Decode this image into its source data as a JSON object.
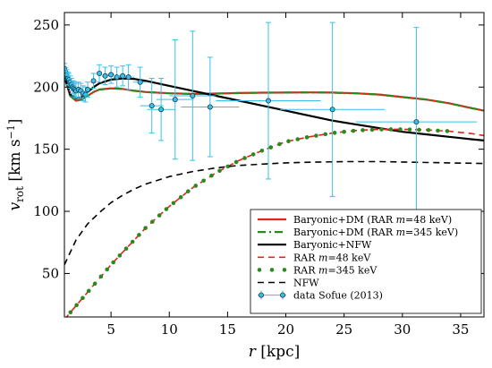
{
  "chart_data": {
    "type": "line",
    "xlabel": "r [kpc]",
    "ylabel": "v_rot [km s^-1]",
    "ylabel_parts": {
      "v": "v",
      "sub": "rot",
      "unit": "[km s",
      "sup": "−1",
      "close": "]"
    },
    "xlabel_parts": {
      "r": "r",
      "unit": " [kpc]"
    },
    "xlim": [
      1,
      37
    ],
    "ylim": [
      15,
      260
    ],
    "xticks": [
      5,
      10,
      15,
      20,
      25,
      30,
      35
    ],
    "yticks": [
      50,
      100,
      150,
      200,
      250
    ],
    "legend_position": "lower-right",
    "series": [
      {
        "name": "Baryonic+DM (RAR  m=48 keV)",
        "label_parts": [
          "Baryonic+DM (RAR  ",
          "m",
          "=48 keV)"
        ],
        "style": "solid",
        "color": "#e8211c",
        "x": [
          1.0,
          1.5,
          2.0,
          2.5,
          3.0,
          3.5,
          4.0,
          5.0,
          6.0,
          7.0,
          8.0,
          10.0,
          12.0,
          14.0,
          16.0,
          18.0,
          20.0,
          22.0,
          24.0,
          26.0,
          28.0,
          30.0,
          32.0,
          34.0,
          36.0,
          37.0
        ],
        "y": [
          208,
          193,
          189,
          190,
          193,
          196,
          198,
          199,
          198.5,
          197,
          196,
          195,
          194.5,
          194.8,
          195.2,
          195.5,
          195.6,
          195.7,
          195.6,
          195,
          194,
          192,
          190,
          187,
          183,
          181
        ]
      },
      {
        "name": "Baryonic+DM (RAR  m=345 keV)",
        "label_parts": [
          "Baryonic+DM (RAR  ",
          "m",
          "=345 keV)"
        ],
        "style": "dashdot",
        "color": "#2a8a1e",
        "x": [
          1.0,
          1.5,
          2.0,
          2.5,
          3.0,
          3.5,
          4.0,
          5.0,
          6.0,
          7.0,
          8.0,
          10.0,
          12.0,
          14.0,
          16.0,
          18.0,
          20.0,
          22.0,
          24.0,
          26.0,
          28.0,
          30.0,
          32.0,
          34.0,
          36.0,
          37.0
        ],
        "y": [
          208,
          193,
          189,
          190,
          193,
          196,
          198,
          199,
          198.5,
          197,
          196,
          195,
          194.5,
          194.8,
          195.2,
          195.5,
          195.6,
          195.7,
          195.6,
          195,
          194,
          192,
          190,
          187,
          183,
          181
        ]
      },
      {
        "name": "Baryonic+NFW",
        "label_parts": [
          "Baryonic+NFW"
        ],
        "style": "solid",
        "color": "#000000",
        "x": [
          1.0,
          1.5,
          2.0,
          2.5,
          3.0,
          3.5,
          4.0,
          5.0,
          6.0,
          7.0,
          8.0,
          10.0,
          12.0,
          14.0,
          16.0,
          18.0,
          20.0,
          22.0,
          24.0,
          26.0,
          28.0,
          30.0,
          32.0,
          34.0,
          36.0,
          37.0
        ],
        "y": [
          209,
          194,
          191,
          192,
          196,
          200,
          203,
          206,
          207,
          206.5,
          205,
          201,
          197,
          193,
          189,
          185,
          181,
          177,
          173,
          170,
          167,
          164,
          162,
          160,
          158,
          157
        ]
      },
      {
        "name": "RAR m=48 keV",
        "label_parts": [
          "RAR ",
          "m",
          "=48 keV"
        ],
        "style": "dashed",
        "color": "#e8211c",
        "x": [
          1.0,
          2.0,
          3.0,
          4.0,
          5.0,
          6.0,
          7.0,
          8.0,
          10.0,
          12.0,
          14.0,
          16.0,
          18.0,
          20.0,
          22.0,
          24.0,
          26.0,
          28.0,
          30.0,
          32.0,
          34.0,
          36.0,
          37.0
        ],
        "y": [
          13,
          24,
          35,
          46,
          57,
          67,
          77,
          87,
          104,
          119,
          131,
          141,
          149,
          156,
          160,
          163,
          165,
          166,
          166,
          165.5,
          164.5,
          162.5,
          161
        ]
      },
      {
        "name": "RAR m=345 keV",
        "label_parts": [
          "RAR ",
          "m",
          "=345 keV"
        ],
        "style": "dots",
        "color": "#2a8a1e",
        "x": [
          1.0,
          2.0,
          3.0,
          4.0,
          5.0,
          6.0,
          7.0,
          8.0,
          10.0,
          12.0,
          14.0,
          16.0,
          18.0,
          20.0,
          22.0,
          24.0,
          26.0,
          28.0,
          30.0,
          32.0,
          34.0
        ],
        "y": [
          13,
          24,
          35,
          46,
          57,
          67,
          77,
          87,
          104,
          119,
          131,
          141,
          149,
          156,
          160,
          163,
          165,
          166,
          166,
          165.5,
          164.5
        ]
      },
      {
        "name": "NFW",
        "label_parts": [
          "NFW"
        ],
        "style": "dashed",
        "color": "#000000",
        "x": [
          1.0,
          2.0,
          3.0,
          4.0,
          5.0,
          6.0,
          7.0,
          8.0,
          10.0,
          12.0,
          14.0,
          16.0,
          18.0,
          20.0,
          22.0,
          25.0,
          28.0,
          31.0,
          34.0,
          37.0
        ],
        "y": [
          57,
          77,
          90,
          99,
          107,
          113,
          118,
          122,
          128,
          132,
          135,
          137,
          138,
          139,
          139.5,
          140,
          140,
          139.5,
          139,
          138.5
        ]
      },
      {
        "name": "data Sofue (2013)",
        "label_parts": [
          "data Sofue (2013)"
        ],
        "style": "errorbar",
        "color": "#38c0e8",
        "points": [
          {
            "x": 1.0,
            "y": 215,
            "xerr": 0.1,
            "yerr": 4
          },
          {
            "x": 1.1,
            "y": 212,
            "xerr": 0.1,
            "yerr": 4
          },
          {
            "x": 1.2,
            "y": 210,
            "xerr": 0.1,
            "yerr": 4
          },
          {
            "x": 1.3,
            "y": 207,
            "xerr": 0.1,
            "yerr": 5
          },
          {
            "x": 1.4,
            "y": 206,
            "xerr": 0.1,
            "yerr": 5
          },
          {
            "x": 1.5,
            "y": 204,
            "xerr": 0.1,
            "yerr": 5
          },
          {
            "x": 1.6,
            "y": 202,
            "xerr": 0.1,
            "yerr": 5
          },
          {
            "x": 1.7,
            "y": 200,
            "xerr": 0.1,
            "yerr": 5
          },
          {
            "x": 1.8,
            "y": 199,
            "xerr": 0.1,
            "yerr": 6
          },
          {
            "x": 1.9,
            "y": 198,
            "xerr": 0.1,
            "yerr": 6
          },
          {
            "x": 2.0,
            "y": 197,
            "xerr": 0.1,
            "yerr": 6
          },
          {
            "x": 2.2,
            "y": 198,
            "xerr": 0.1,
            "yerr": 6
          },
          {
            "x": 2.4,
            "y": 197,
            "xerr": 0.1,
            "yerr": 6
          },
          {
            "x": 2.6,
            "y": 195,
            "xerr": 0.1,
            "yerr": 6
          },
          {
            "x": 2.8,
            "y": 194,
            "xerr": 0.1,
            "yerr": 6
          },
          {
            "x": 3.0,
            "y": 198,
            "xerr": 0.1,
            "yerr": 6
          },
          {
            "x": 3.5,
            "y": 205,
            "xerr": 0.2,
            "yerr": 6
          },
          {
            "x": 4.0,
            "y": 211,
            "xerr": 0.2,
            "yerr": 7
          },
          {
            "x": 4.5,
            "y": 209,
            "xerr": 0.3,
            "yerr": 7
          },
          {
            "x": 5.0,
            "y": 210,
            "xerr": 0.3,
            "yerr": 7
          },
          {
            "x": 5.5,
            "y": 208,
            "xerr": 0.3,
            "yerr": 8
          },
          {
            "x": 6.0,
            "y": 209,
            "xerr": 0.4,
            "yerr": 8
          },
          {
            "x": 6.5,
            "y": 208,
            "xerr": 0.5,
            "yerr": 10
          },
          {
            "x": 7.5,
            "y": 204,
            "xerr": 0.6,
            "yerr": 12
          },
          {
            "x": 8.5,
            "y": 185,
            "xerr": 1.0,
            "yerr": 22
          },
          {
            "x": 9.3,
            "y": 182,
            "xerr": 1.2,
            "yerr": 25
          },
          {
            "x": 10.5,
            "y": 190,
            "xerr": 1.6,
            "yerr": 48
          },
          {
            "x": 12.0,
            "y": 193,
            "xerr": 2.0,
            "yerr": 52
          },
          {
            "x": 13.5,
            "y": 184,
            "xerr": 2.5,
            "yerr": 40
          },
          {
            "x": 18.5,
            "y": 189,
            "xerr": 4.5,
            "yerr": 63
          },
          {
            "x": 24.0,
            "y": 182,
            "xerr": 4.5,
            "yerr": 70
          },
          {
            "x": 31.2,
            "y": 172,
            "xerr": 5.2,
            "yerr": 76
          }
        ]
      }
    ]
  }
}
